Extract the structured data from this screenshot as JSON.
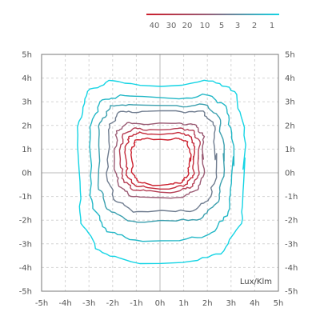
{
  "chart_data": {
    "type": "contour",
    "x_ticks": [
      "-5h",
      "-4h",
      "-3h",
      "-2h",
      "-1h",
      "0h",
      "1h",
      "2h",
      "3h",
      "4h",
      "5h"
    ],
    "y_ticks": [
      "5h",
      "4h",
      "3h",
      "2h",
      "1h",
      "0h",
      "-1h",
      "-2h",
      "-3h",
      "-4h",
      "-5h"
    ],
    "xlim": [
      -5,
      5
    ],
    "ylim": [
      -5,
      5
    ],
    "unit_label": "Lux/Klm",
    "grid": true,
    "legend_position": "top-right",
    "legend": [
      {
        "label": "40",
        "color": "#cc1f2d"
      },
      {
        "label": "30",
        "color": "#c42a3a"
      },
      {
        "label": "20",
        "color": "#b53f55"
      },
      {
        "label": "10",
        "color": "#9a5a73"
      },
      {
        "label": "5",
        "color": "#6f7c8f"
      },
      {
        "label": "3",
        "color": "#3a9fae"
      },
      {
        "label": "2",
        "color": "#22b7c6"
      },
      {
        "label": "1",
        "color": "#14d4e4"
      }
    ],
    "contours": [
      {
        "level": "1",
        "color": "#14d4e4",
        "top": 4.1,
        "right": 3.55,
        "bottom": -3.8,
        "left": -3.45
      },
      {
        "level": "2",
        "color": "#22b7c6",
        "top": 3.45,
        "right": 3.05,
        "bottom": -2.85,
        "left": -2.95
      },
      {
        "level": "3",
        "color": "#3a9fae",
        "top": 3.05,
        "right": 2.65,
        "bottom": -2.05,
        "left": -2.6
      },
      {
        "level": "5",
        "color": "#6f7c8f",
        "top": 2.75,
        "right": 2.35,
        "bottom": -1.65,
        "left": -2.2
      },
      {
        "level": "10",
        "color": "#9a5a73",
        "top": 2.2,
        "right": 1.85,
        "bottom": -1.05,
        "left": -1.9
      },
      {
        "level": "20",
        "color": "#b53f55",
        "top": 1.95,
        "right": 1.65,
        "bottom": -0.8,
        "left": -1.65
      },
      {
        "level": "30",
        "color": "#c42a3a",
        "top": 1.75,
        "right": 1.45,
        "bottom": -0.65,
        "left": -1.45
      },
      {
        "level": "40",
        "color": "#cc1f2d",
        "top": 1.5,
        "right": 1.25,
        "bottom": -0.5,
        "left": -1.2
      }
    ]
  }
}
